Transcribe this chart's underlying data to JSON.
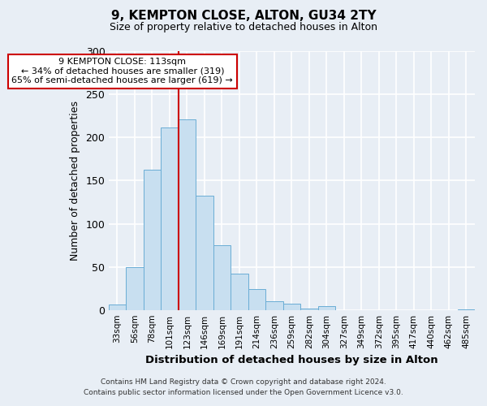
{
  "title": "9, KEMPTON CLOSE, ALTON, GU34 2TY",
  "subtitle": "Size of property relative to detached houses in Alton",
  "xlabel": "Distribution of detached houses by size in Alton",
  "ylabel": "Number of detached properties",
  "footer_line1": "Contains HM Land Registry data © Crown copyright and database right 2024.",
  "footer_line2": "Contains public sector information licensed under the Open Government Licence v3.0.",
  "categories": [
    "33sqm",
    "56sqm",
    "78sqm",
    "101sqm",
    "123sqm",
    "146sqm",
    "169sqm",
    "191sqm",
    "214sqm",
    "236sqm",
    "259sqm",
    "282sqm",
    "304sqm",
    "327sqm",
    "349sqm",
    "372sqm",
    "395sqm",
    "417sqm",
    "440sqm",
    "462sqm",
    "485sqm"
  ],
  "values": [
    7,
    50,
    163,
    211,
    221,
    133,
    75,
    43,
    25,
    11,
    8,
    2,
    5,
    0,
    0,
    0,
    0,
    0,
    0,
    0,
    1
  ],
  "bar_color": "#c8dff0",
  "bar_edge_color": "#6aadd5",
  "ylim": [
    0,
    300
  ],
  "yticks": [
    0,
    50,
    100,
    150,
    200,
    250,
    300
  ],
  "property_line_x": 3.5,
  "property_line_color": "#cc0000",
  "annotation_title": "9 KEMPTON CLOSE: 113sqm",
  "annotation_line1": "← 34% of detached houses are smaller (319)",
  "annotation_line2": "65% of semi-detached houses are larger (619) →",
  "annotation_box_color": "#ffffff",
  "annotation_box_edge_color": "#cc0000",
  "bg_color": "#e8eef5"
}
